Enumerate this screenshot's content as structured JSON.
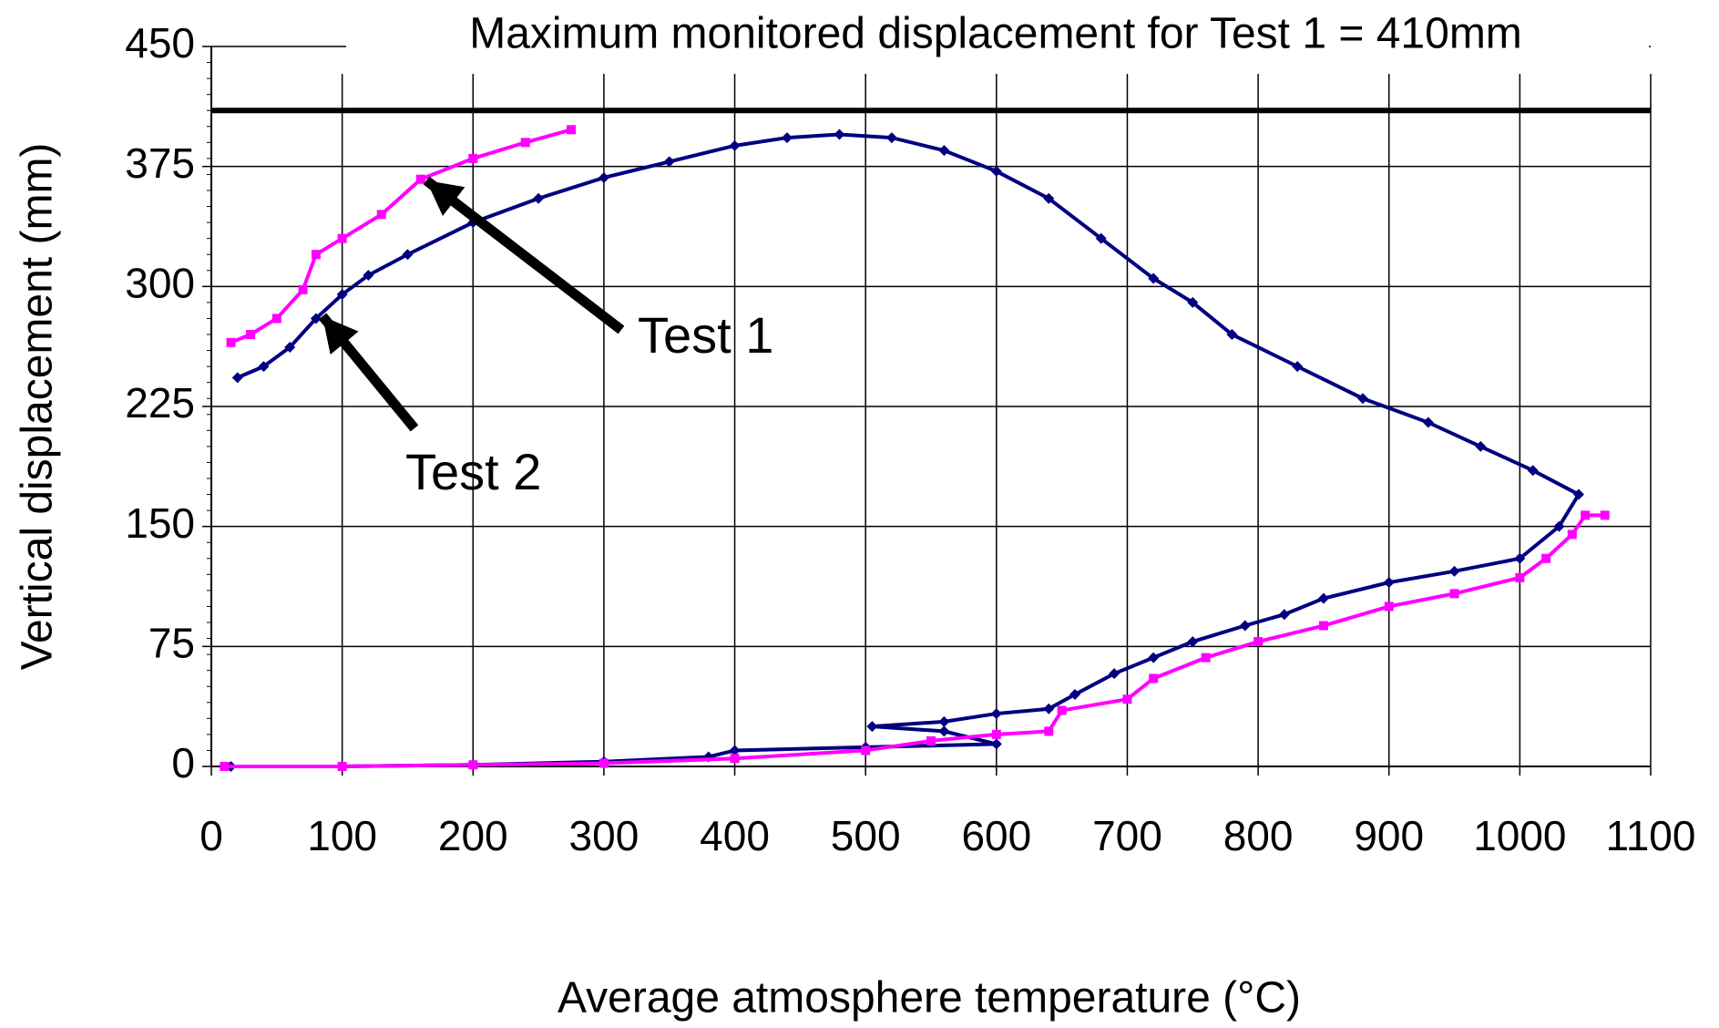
{
  "chart_data": {
    "type": "line",
    "title": "Maximum monitored displacement for Test 1 = 410mm",
    "x_label": "Average atmosphere temperature (°C)",
    "y_label": "Vertical displacement (mm)",
    "xlim": [
      0,
      1100
    ],
    "ylim": [
      0,
      450
    ],
    "xticks": [
      0,
      100,
      200,
      300,
      400,
      500,
      600,
      700,
      800,
      900,
      1000,
      1100
    ],
    "yticks": [
      0,
      75,
      150,
      225,
      300,
      375,
      450
    ],
    "grid": true,
    "reference_line": {
      "value": 410,
      "color": "#000000"
    },
    "series": [
      {
        "name": "Test 1",
        "color": "#ff00ff",
        "marker": "square",
        "x": [
          10,
          100,
          200,
          300,
          400,
          500,
          550,
          600,
          640,
          650,
          700,
          720,
          760,
          800,
          850,
          900,
          950,
          1000,
          1020,
          1040,
          1050,
          1065,
          null,
          15,
          30,
          50,
          70,
          80,
          100,
          130,
          160,
          200,
          240,
          275
        ],
        "values": [
          0,
          0,
          1,
          2,
          5,
          10,
          16,
          20,
          22,
          35,
          42,
          55,
          68,
          78,
          88,
          100,
          108,
          118,
          130,
          145,
          157,
          157,
          null,
          265,
          270,
          280,
          298,
          320,
          330,
          345,
          367,
          380,
          390,
          398
        ]
      },
      {
        "name": "Test 2",
        "color": "#000080",
        "marker": "diamond",
        "x": [
          15,
          100,
          200,
          300,
          380,
          400,
          500,
          600,
          560,
          505,
          560,
          600,
          640,
          660,
          690,
          720,
          750,
          790,
          820,
          850,
          900,
          950,
          1000,
          1030,
          1045,
          1010,
          970,
          930,
          880,
          830,
          780,
          750,
          720,
          680,
          640,
          600,
          560,
          520,
          480,
          440,
          400,
          350,
          300,
          250,
          200,
          150,
          120,
          100,
          80,
          60,
          40,
          20
        ],
        "values": [
          0,
          0,
          1,
          3,
          6,
          10,
          12,
          14,
          22,
          25,
          28,
          33,
          36,
          45,
          58,
          68,
          78,
          88,
          95,
          105,
          115,
          122,
          130,
          150,
          170,
          185,
          200,
          215,
          230,
          250,
          270,
          290,
          305,
          330,
          355,
          372,
          385,
          393,
          395,
          393,
          388,
          378,
          368,
          355,
          340,
          320,
          307,
          295,
          280,
          262,
          250,
          243
        ]
      }
    ]
  }
}
